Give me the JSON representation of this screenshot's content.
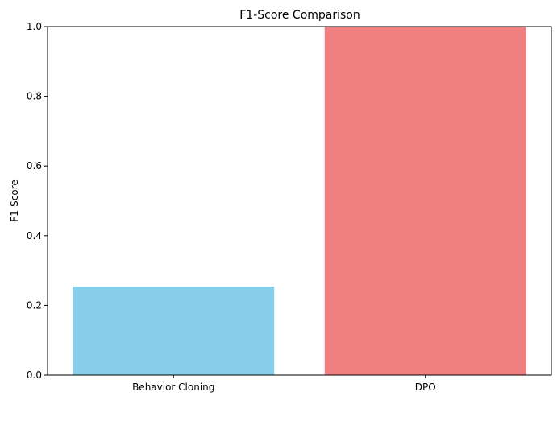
{
  "chart_data": {
    "type": "bar",
    "title": "F1-Score Comparison",
    "xlabel": "",
    "ylabel": "F1-Score",
    "ylim": [
      0,
      1.0
    ],
    "yticks": [
      "0.0",
      "0.2",
      "0.4",
      "0.6",
      "0.8",
      "1.0"
    ],
    "categories": [
      "Behavior Cloning",
      "DPO"
    ],
    "values": [
      0.254,
      1.0
    ],
    "colors": [
      "#87ceeb",
      "#f08080"
    ],
    "grid": false,
    "legend": "none"
  }
}
